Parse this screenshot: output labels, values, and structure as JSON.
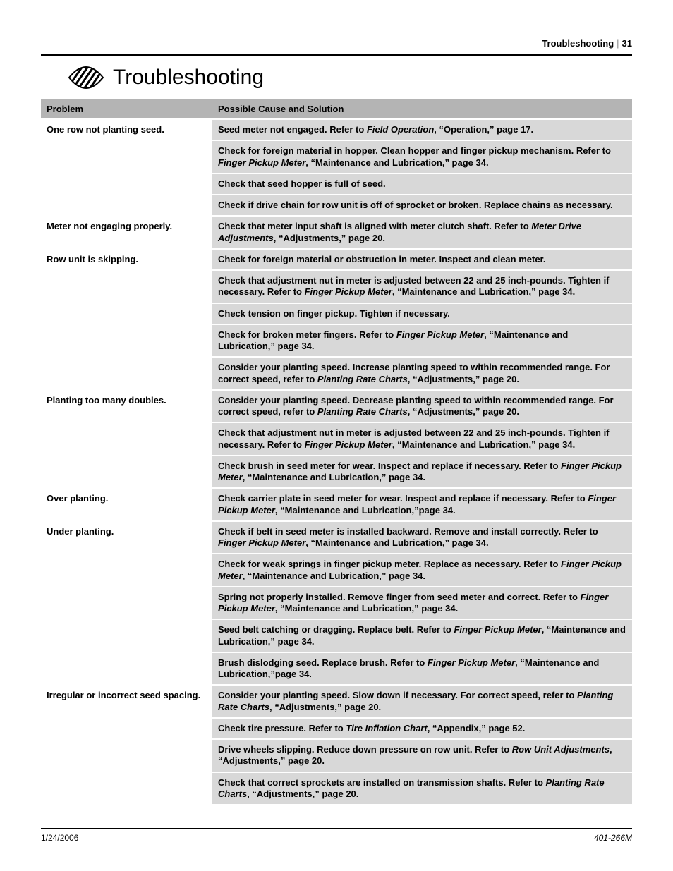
{
  "header": {
    "section": "Troubleshooting",
    "page": "31"
  },
  "title": "Troubleshooting",
  "columns": {
    "problem": "Problem",
    "solution": "Possible Cause and Solution"
  },
  "rows": [
    {
      "problem": "One row not planting seed.",
      "solutions": [
        [
          {
            "t": "Seed meter not engaged. Refer to "
          },
          {
            "t": "Field Operation",
            "i": true
          },
          {
            "t": ", “Operation,” page 17."
          }
        ],
        [
          {
            "t": "Check for foreign material in hopper. Clean hopper and finger pickup mechanism. Refer to "
          },
          {
            "t": "Finger Pickup Meter",
            "i": true
          },
          {
            "t": ", “Maintenance and Lubrication,” page 34."
          }
        ],
        [
          {
            "t": "Check that seed hopper is full of seed."
          }
        ],
        [
          {
            "t": "Check if drive chain for row unit is off of sprocket or broken. Replace chains as necessary."
          }
        ]
      ]
    },
    {
      "problem": "Meter not engaging properly.",
      "solutions": [
        [
          {
            "t": "Check that meter input shaft is aligned with meter clutch shaft. Refer to "
          },
          {
            "t": "Meter Drive Adjustments",
            "i": true
          },
          {
            "t": ", “Adjustments,” page 20."
          }
        ]
      ]
    },
    {
      "problem": "Row unit is skipping.",
      "solutions": [
        [
          {
            "t": "Check for foreign material or obstruction in meter. Inspect and clean meter."
          }
        ],
        [
          {
            "t": "Check that adjustment nut in meter is adjusted between 22 and 25 inch-pounds. Tighten if necessary. Refer to "
          },
          {
            "t": "Finger Pickup Meter",
            "i": true
          },
          {
            "t": ", “Maintenance and Lubrication,” page 34."
          }
        ],
        [
          {
            "t": "Check tension on finger pickup. Tighten if necessary."
          }
        ],
        [
          {
            "t": "Check for broken meter fingers. Refer to "
          },
          {
            "t": "Finger Pickup Meter",
            "i": true
          },
          {
            "t": ", “Maintenance and Lubrication,” page 34."
          }
        ],
        [
          {
            "t": "Consider your planting speed. Increase planting speed to within recommended range. For correct speed, refer to "
          },
          {
            "t": "Planting Rate Charts",
            "i": true
          },
          {
            "t": ", “Adjustments,” page 20."
          }
        ]
      ]
    },
    {
      "problem": "Planting too many doubles.",
      "solutions": [
        [
          {
            "t": "Consider your planting speed. Decrease planting speed to within recommended range. For correct speed, refer to "
          },
          {
            "t": "Planting Rate Charts",
            "i": true
          },
          {
            "t": ", “Adjustments,” page 20."
          }
        ],
        [
          {
            "t": "Check that adjustment nut in meter is adjusted between 22 and 25 inch-pounds. Tighten if necessary. Refer to "
          },
          {
            "t": "Finger Pickup Meter",
            "i": true
          },
          {
            "t": ", “Maintenance and Lubrication,” page 34."
          }
        ],
        [
          {
            "t": "Check brush in seed meter for wear. Inspect and replace if necessary. Refer to "
          },
          {
            "t": "Finger Pickup Meter",
            "i": true
          },
          {
            "t": ", “Maintenance and Lubrication,” page 34."
          }
        ]
      ]
    },
    {
      "problem": "Over planting.",
      "solutions": [
        [
          {
            "t": "Check carrier plate in seed meter for wear. Inspect and replace if necessary. Refer to "
          },
          {
            "t": "Finger Pickup Meter",
            "i": true
          },
          {
            "t": ", “Maintenance and Lubrication,”page 34."
          }
        ]
      ]
    },
    {
      "problem": "Under planting.",
      "solutions": [
        [
          {
            "t": "Check if belt in seed meter is installed backward. Remove and install correctly. Refer to "
          },
          {
            "t": "Finger Pickup Meter",
            "i": true
          },
          {
            "t": ", “Maintenance and Lubrication,” page 34."
          }
        ],
        [
          {
            "t": "Check for weak springs in finger pickup meter. Replace as necessary. Refer to "
          },
          {
            "t": "Finger Pickup Meter",
            "i": true
          },
          {
            "t": ", “Maintenance and Lubrication,” page 34."
          }
        ],
        [
          {
            "t": "Spring not properly installed. Remove finger from seed meter and correct. Refer to "
          },
          {
            "t": "Finger Pickup Meter",
            "i": true
          },
          {
            "t": ", “Maintenance and Lubrication,” page 34."
          }
        ],
        [
          {
            "t": "Seed belt catching or dragging. Replace belt. Refer to "
          },
          {
            "t": "Finger Pickup Meter",
            "i": true
          },
          {
            "t": ", “Maintenance and Lubrication,” page 34."
          }
        ],
        [
          {
            "t": "Brush dislodging seed. Replace brush. Refer to "
          },
          {
            "t": "Finger Pickup Meter",
            "i": true
          },
          {
            "t": ", “Maintenance and Lubrication,”page 34."
          }
        ]
      ]
    },
    {
      "problem": "Irregular or incorrect seed spacing.",
      "solutions": [
        [
          {
            "t": "Consider your planting speed. Slow down if necessary. For correct speed, refer to "
          },
          {
            "t": "Planting Rate Charts",
            "i": true
          },
          {
            "t": ", “Adjustments,” page 20."
          }
        ],
        [
          {
            "t": "Check tire pressure. Refer to "
          },
          {
            "t": "Tire Inflation Chart",
            "i": true
          },
          {
            "t": ", “Appendix,” page 52."
          }
        ],
        [
          {
            "t": "Drive wheels slipping. Reduce down pressure on row unit. Refer to "
          },
          {
            "t": "Row Unit Adjustments",
            "i": true
          },
          {
            "t": ", “Adjustments,” page 20."
          }
        ],
        [
          {
            "t": "Check that correct sprockets are installed on transmission shafts. Refer to "
          },
          {
            "t": "Planting Rate Charts",
            "i": true
          },
          {
            "t": ", “Adjustments,” page 20."
          }
        ]
      ]
    }
  ],
  "footer": {
    "date": "1/24/2006",
    "doc": "401-266M"
  },
  "colors": {
    "header_bg": "#b4b4b4",
    "cell_bg": "#d8d8d8",
    "rule": "#000000",
    "text": "#000000"
  }
}
